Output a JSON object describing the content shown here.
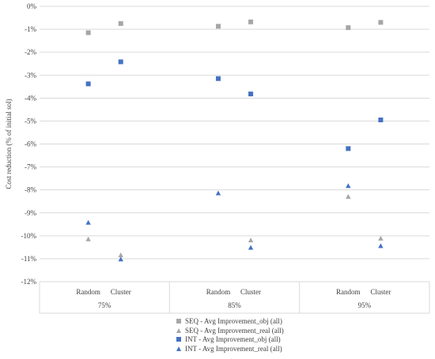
{
  "chart_data": {
    "type": "scatter",
    "title": "",
    "ylabel": "Cost reduction (% of initial sol)",
    "ylim": [
      -12,
      0
    ],
    "y_ticks": [
      "0%",
      "-1%",
      "-2%",
      "-3%",
      "-4%",
      "-5%",
      "-6%",
      "-7%",
      "-8%",
      "-9%",
      "-10%",
      "-11%",
      "-12%"
    ],
    "groups": [
      {
        "label": "75%",
        "categories": [
          "Random",
          "Cluster"
        ]
      },
      {
        "label": "85%",
        "categories": [
          "Random",
          "Cluster"
        ]
      },
      {
        "label": "95%",
        "categories": [
          "Random",
          "Cluster"
        ]
      }
    ],
    "grid": true,
    "legend_position": "bottom",
    "series": [
      {
        "name": "SEQ - Avg Improvement_obj (all)",
        "marker": "square",
        "color": "#a6a6a6",
        "values": [
          -1.15,
          -0.75,
          -0.87,
          -0.68,
          -0.93,
          -0.7
        ]
      },
      {
        "name": "SEQ - Avg Improvement_real (all)",
        "marker": "triangle",
        "color": "#a6a6a6",
        "values": [
          -10.15,
          -10.85,
          null,
          -10.2,
          -8.3,
          -10.12
        ]
      },
      {
        "name": "INT - Avg Improvement_obj (all)",
        "marker": "square",
        "color": "#4472c4",
        "values": [
          -3.38,
          -2.42,
          -3.15,
          -3.82,
          -6.2,
          -4.95
        ]
      },
      {
        "name": "INT - Avg Improvement_real (all)",
        "marker": "triangle",
        "color": "#4472c4",
        "values": [
          -9.43,
          -11.03,
          -8.15,
          -10.52,
          -7.83,
          -10.45
        ]
      }
    ]
  }
}
